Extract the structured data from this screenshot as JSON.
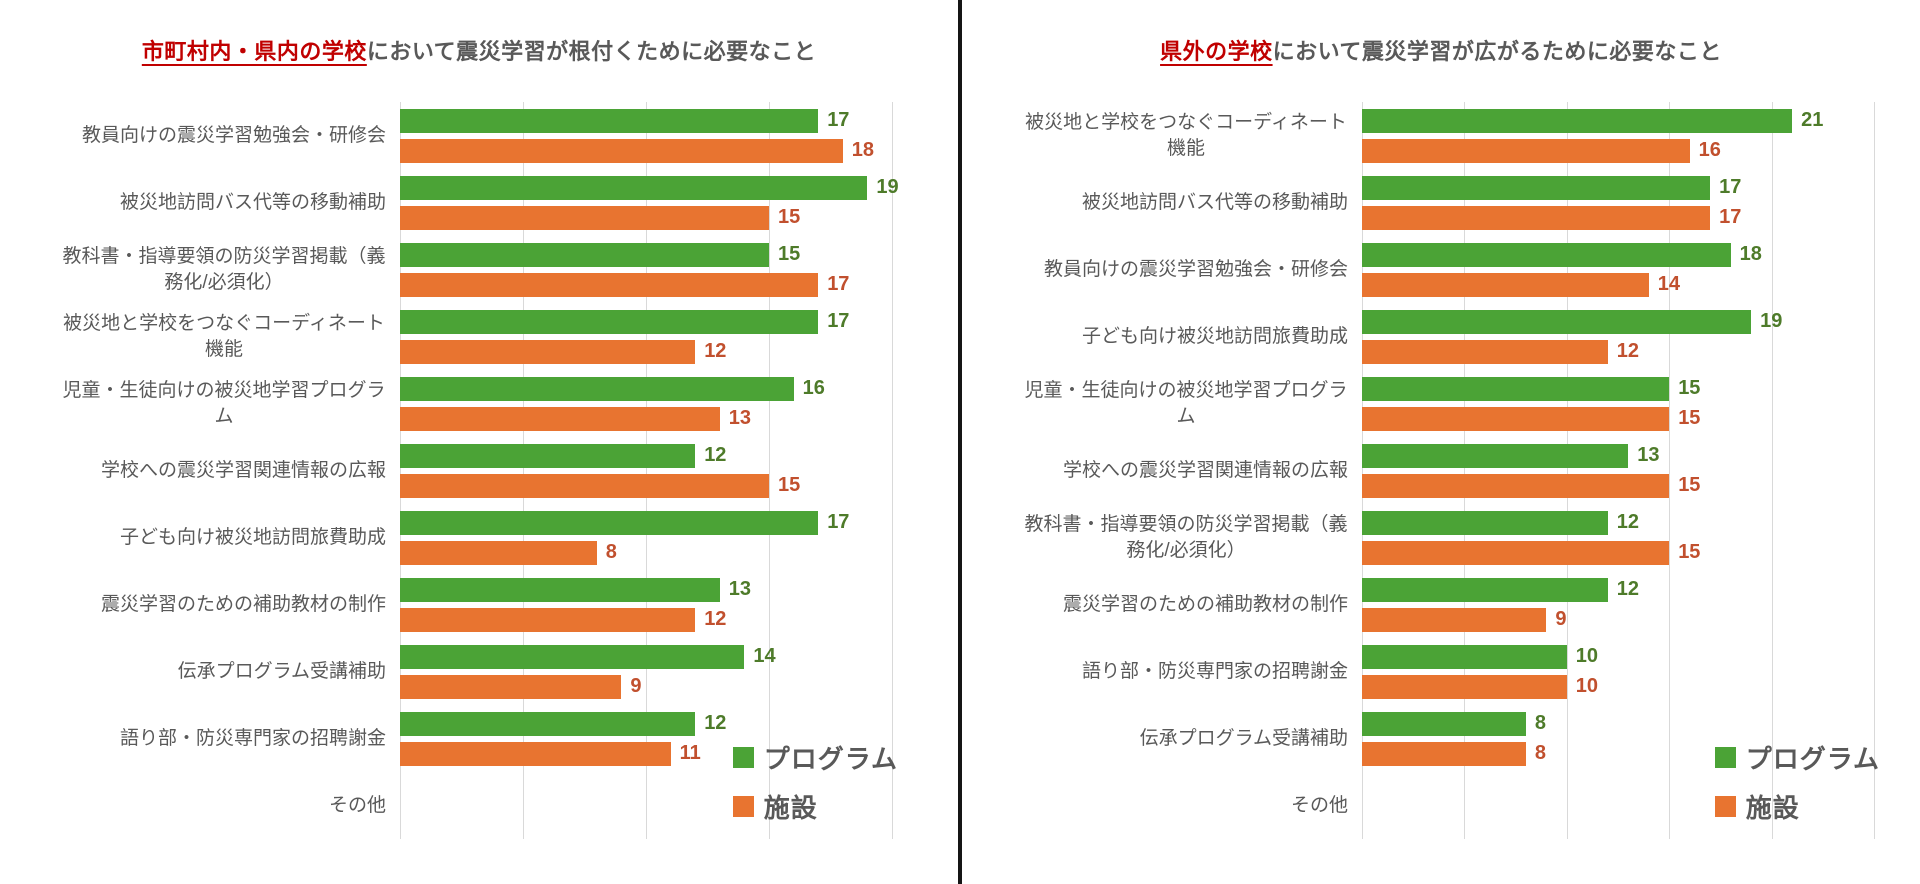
{
  "chart_data": [
    {
      "type": "bar",
      "orientation": "horizontal",
      "title_highlight": "市町村内・県内の学校",
      "title_rest": "において震災学習が根付くために必要なこと",
      "axis": {
        "min": 0,
        "max": 20,
        "gridline_step": 5,
        "gridlines_visible": true,
        "tick_labels_visible": false
      },
      "legend_position": "bottom-right-inside",
      "categories": [
        "教員向けの震災学習勉強会・研修会",
        "被災地訪問バス代等の移動補助",
        "教科書・指導要領の防災学習掲載（義務化/必須化）",
        "被災地と学校をつなぐコーディネート機能",
        "児童・生徒向けの被災地学習プログラム",
        "学校への震災学習関連情報の広報",
        "子ども向け被災地訪問旅費助成",
        "震災学習のための補助教材の制作",
        "伝承プログラム受講補助",
        "語り部・防災専門家の招聘謝金",
        "その他"
      ],
      "series": [
        {
          "name": "プログラム",
          "bar_color": "#4BA336",
          "value_color": "#4e7b2a",
          "values": [
            17,
            19,
            15,
            17,
            16,
            12,
            17,
            13,
            14,
            12,
            null
          ]
        },
        {
          "name": "施設",
          "bar_color": "#E87430",
          "value_color": "#c1502e",
          "values": [
            18,
            15,
            17,
            12,
            13,
            15,
            8,
            12,
            9,
            11,
            null
          ]
        }
      ]
    },
    {
      "type": "bar",
      "orientation": "horizontal",
      "title_highlight": "県外の学校",
      "title_rest": "において震災学習が広がるために必要なこと",
      "axis": {
        "min": 0,
        "max": 25,
        "gridline_step": 5,
        "gridlines_visible": true,
        "tick_labels_visible": false
      },
      "legend_position": "bottom-right-inside",
      "categories": [
        "被災地と学校をつなぐコーディネート機能",
        "被災地訪問バス代等の移動補助",
        "教員向けの震災学習勉強会・研修会",
        "子ども向け被災地訪問旅費助成",
        "児童・生徒向けの被災地学習プログラム",
        "学校への震災学習関連情報の広報",
        "教科書・指導要領の防災学習掲載（義務化/必須化）",
        "震災学習のための補助教材の制作",
        "語り部・防災専門家の招聘謝金",
        "伝承プログラム受講補助",
        "その他"
      ],
      "series": [
        {
          "name": "プログラム",
          "bar_color": "#4BA336",
          "value_color": "#4e7b2a",
          "values": [
            21,
            17,
            18,
            19,
            15,
            13,
            12,
            12,
            10,
            8,
            null
          ]
        },
        {
          "name": "施設",
          "bar_color": "#E87430",
          "value_color": "#c1502e",
          "values": [
            16,
            17,
            14,
            12,
            15,
            15,
            15,
            9,
            10,
            8,
            null
          ]
        }
      ]
    }
  ],
  "styles": {
    "title_highlight_color": "#c00000",
    "title_text_color": "#595959",
    "gridline_color": "#d9d9d9",
    "divider_color": "#151515"
  }
}
